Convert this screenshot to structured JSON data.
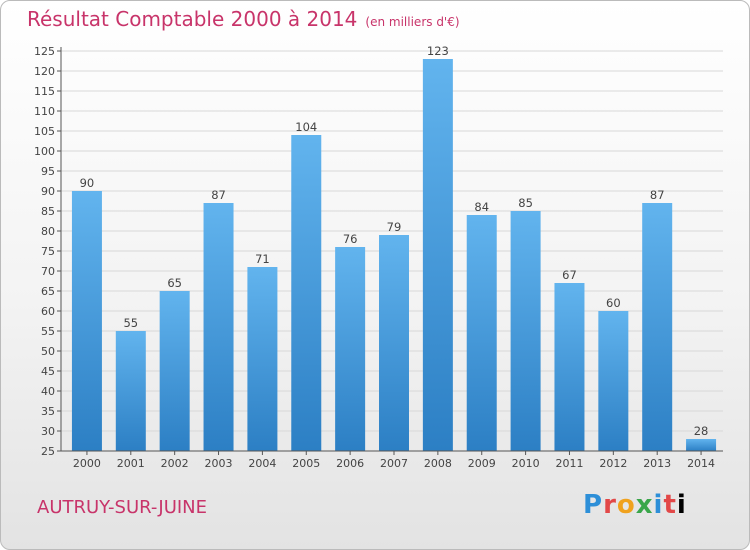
{
  "title": "Résultat Comptable 2000 à 2014",
  "title_unit": "(en milliers d'€)",
  "town": "AUTRUY-SUR-JUINE",
  "logo_letters": [
    "P",
    "r",
    "o",
    "x",
    "i",
    "t",
    "i"
  ],
  "logo_text": "Proxiti",
  "colors": {
    "title": "#c8346a",
    "bar_light": "#62b4ee",
    "bar_dark": "#2c7fc4",
    "grid": "#d8d8d8"
  },
  "chart_data": {
    "type": "bar",
    "title": "Résultat Comptable 2000 à 2014",
    "xlabel": "",
    "ylabel": "",
    "categories": [
      "2000",
      "2001",
      "2002",
      "2003",
      "2004",
      "2005",
      "2006",
      "2007",
      "2008",
      "2009",
      "2010",
      "2011",
      "2012",
      "2013",
      "2014"
    ],
    "values": [
      90,
      55,
      65,
      87,
      71,
      104,
      76,
      79,
      123,
      84,
      85,
      67,
      60,
      87,
      28
    ],
    "ylim": [
      25,
      125
    ],
    "yticks": [
      25,
      30,
      35,
      40,
      45,
      50,
      55,
      60,
      65,
      70,
      75,
      80,
      85,
      90,
      95,
      100,
      105,
      110,
      115,
      120,
      125
    ],
    "grid": true
  }
}
